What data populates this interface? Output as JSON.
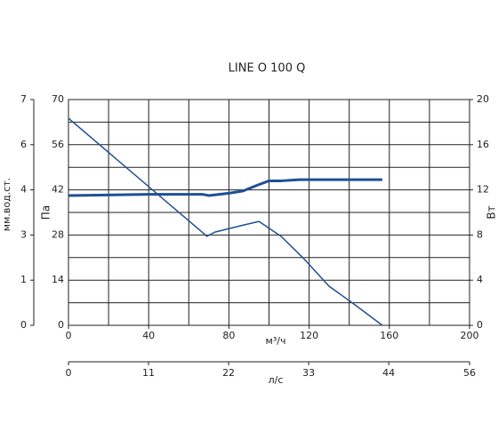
{
  "chart_data": {
    "type": "line",
    "title": "LINE O 100 Q",
    "xlabel": "м³/ч",
    "x2label": "л/с",
    "ylabel": "Па",
    "y2label": "Вт",
    "y3label": "мм.вод.ст.",
    "xlim": [
      0,
      200
    ],
    "xticks": [
      0,
      40,
      80,
      120,
      160,
      200
    ],
    "x2lim": [
      0,
      55.6
    ],
    "x2ticks": [
      0,
      {
        "value": 11.1,
        "label": "11"
      },
      {
        "value": 22.2,
        "label": "22"
      },
      {
        "value": 33.3,
        "label": "33"
      },
      {
        "value": 44.4,
        "label": "44"
      },
      {
        "value": 55.6,
        "label": "56"
      }
    ],
    "ylim": [
      0,
      70
    ],
    "yticks": [
      0,
      14,
      28,
      42,
      56,
      70
    ],
    "y2lim": [
      0,
      20
    ],
    "y2ticks": [
      0,
      4,
      8,
      12,
      16,
      20
    ],
    "y3lim": [
      0,
      7
    ],
    "y3ticks": [
      0,
      {
        "value": 1.4,
        "label": "1"
      },
      {
        "value": 2.8,
        "label": "3"
      },
      {
        "value": 4.2,
        "label": "4"
      },
      {
        "value": 5.6,
        "label": "6"
      },
      7
    ],
    "grid": true,
    "series": [
      {
        "color": "#1f4f96",
        "x": [
          0,
          67,
          69,
          73,
          86,
          95,
          106,
          117,
          130,
          143,
          156.5
        ],
        "values": [
          64.2,
          28.7,
          27.6,
          28.9,
          30.9,
          32.2,
          27.6,
          20.9,
          12.1,
          6.3,
          0
        ]
      },
      {
        "color": "#1f4f96",
        "axis": "y2",
        "x": [
          0,
          40,
          67,
          70,
          80,
          87,
          94,
          100,
          106,
          115,
          156.5
        ],
        "values": [
          11.5,
          11.6,
          11.6,
          11.5,
          11.7,
          11.9,
          12.4,
          12.8,
          12.8,
          12.9,
          12.9
        ]
      }
    ]
  }
}
